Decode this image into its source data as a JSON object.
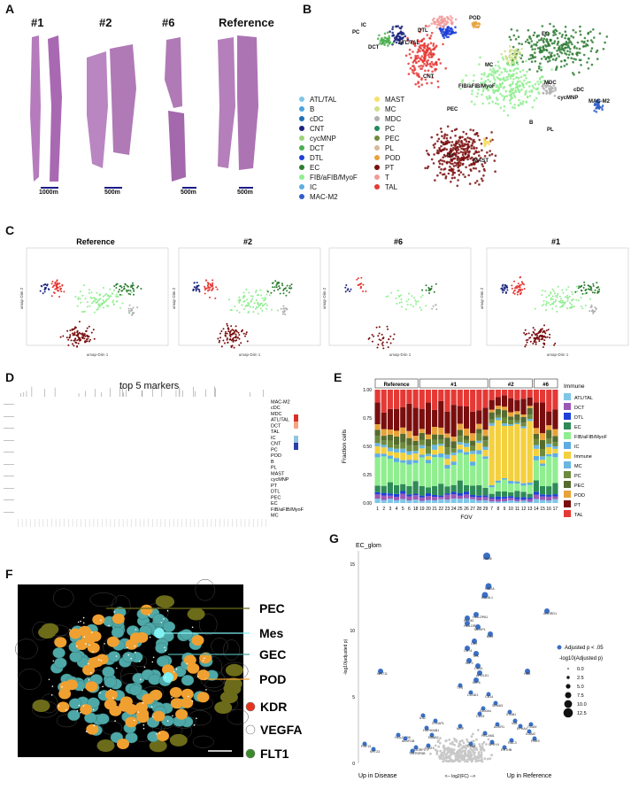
{
  "panel_letters": {
    "A": "A",
    "B": "B",
    "C": "C",
    "D": "D",
    "E": "E",
    "F": "F",
    "G": "G"
  },
  "panelA": {
    "samples": [
      "#1",
      "#2",
      "#6",
      "Reference"
    ],
    "scalebars": [
      "1000m",
      "500m",
      "500m",
      "500m"
    ],
    "tissue_color": "#b07ab6"
  },
  "panelB": {
    "legend_col1": [
      "ATL/TAL",
      "B",
      "cDC",
      "CNT",
      "cycMNP",
      "DCT",
      "DTL",
      "EC",
      "FIB/aFIB/MyoF",
      "IC",
      "MAC-M2"
    ],
    "legend_col2": [
      "MAST",
      "MC",
      "MDC",
      "PC",
      "PEC",
      "PL",
      "POD",
      "PT",
      "T",
      "TAL"
    ],
    "colors_col1": [
      "#7fc6e8",
      "#4aa3df",
      "#1f6fb5",
      "#1a237e",
      "#9cd37a",
      "#4caf50",
      "#1e40d8",
      "#2e7d32",
      "#90ee90",
      "#5dade2",
      "#2f5ec9"
    ],
    "colors_col2": [
      "#f7e06a",
      "#cfe08a",
      "#b0b0b0",
      "#1f8a5a",
      "#6e8b3d",
      "#d9b89a",
      "#e8a23a",
      "#7a0e0e",
      "#f29a9a",
      "#e53935"
    ],
    "cluster_labels": [
      "PC",
      "IC",
      "DCT",
      "ATL/TAL",
      "DTL",
      "POD",
      "EC",
      "MC",
      "CNT",
      "FIB/aFIB/MyoF",
      "MDC",
      "cDC",
      "cycMNP",
      "MAC-M2",
      "PEC",
      "B",
      "PL",
      "PT",
      "MAST"
    ]
  },
  "panelC": {
    "titles": [
      "Reference",
      "#2",
      "#6",
      "#1"
    ],
    "xlabel": "umap-Dim 1",
    "ylabel": "umap-Dim 2"
  },
  "panelD": {
    "title": "top 5 markers",
    "rows": [
      "MAC-M2",
      "cDC",
      "MDC",
      "ATL/TAL",
      "DCT",
      "TAL",
      "IC",
      "CNT",
      "PC",
      "POD",
      "B",
      "PL",
      "MAST",
      "cycMNP",
      "PT",
      "DTL",
      "PEC",
      "EC",
      "FIB/aFIB/MyoF",
      "MC"
    ]
  },
  "panelE": {
    "groups": [
      "Reference",
      "#1",
      "#2",
      "#6"
    ],
    "ylabel": "Fraction cells",
    "xlabel": "FOV",
    "fov_labels": [
      "1",
      "2",
      "3",
      "4",
      "5",
      "6",
      "18",
      "19",
      "20",
      "21",
      "22",
      "23",
      "24",
      "25",
      "26",
      "27",
      "28",
      "29",
      "7",
      "8",
      "9",
      "10",
      "11",
      "12",
      "13",
      "14",
      "15",
      "16",
      "17"
    ],
    "yticks": [
      "0.00",
      "0.25",
      "0.50",
      "0.75",
      "1.00"
    ],
    "legend_title": "Immune",
    "legend": [
      "ATL/TAL",
      "DCT",
      "DTL",
      "EC",
      "FIB/aFIB/MyoF",
      "IC",
      "Immune",
      "MC",
      "PC",
      "PEC",
      "POD",
      "PT",
      "TAL"
    ],
    "legend_colors": [
      "#7fc6e8",
      "#9b59b6",
      "#1e40d8",
      "#2e8b57",
      "#90ee90",
      "#5dade2",
      "#f4d03f",
      "#6bb6e0",
      "#6e8b3d",
      "#556b2f",
      "#e8a23a",
      "#7a0e0e",
      "#e53935"
    ]
  },
  "panelF": {
    "labels": [
      "PEC",
      "Mes",
      "GEC",
      "POD",
      "KDR",
      "VEGFA",
      "FLT1"
    ],
    "line_colors": [
      "#6b6b1a",
      "#80f0f0",
      "#4fa8a8",
      "#f0a030"
    ],
    "dot_colors": [
      "#e8321e",
      "#ffffff",
      "#3a8a2a"
    ]
  },
  "panelG": {
    "title": "EC_glom",
    "ylabel": "-log10(adjusted p)",
    "x_left": "Up in Disease",
    "x_mid": "<-- log2(FC) -->",
    "x_right": "Up in Reference",
    "yticks": [
      "0",
      "5",
      "10",
      "15"
    ],
    "legend_adj": "Adjusted p < .05",
    "legend_size_title": "-log10(Adjusted p)",
    "legend_sizes": [
      "0.0",
      "2.5",
      "5.0",
      "7.5",
      "10.0",
      "12.5"
    ],
    "genes": [
      "GAS6",
      "NID2A",
      "BCL6L1",
      "ADGRD1",
      "HLA-DPA1",
      "IFITM2",
      "HLA-DRB1",
      "MLXIPL",
      "B2M",
      "CD9",
      "CD74",
      "TEK",
      "KLF2",
      "CD34",
      "APOLD1",
      "KLF6",
      "HBB",
      "TYR",
      "CCND1",
      "CD14",
      "SEMA3",
      "S100A4",
      "CD93",
      "STAB1",
      "VIM",
      "ACKR1",
      "EPHA4",
      "ITGA9",
      "WNT11",
      "IL32",
      "STEAP1",
      "HSP90AB1",
      "EFNB2",
      "HLA-DRB5",
      "FGF13",
      "KRT23",
      "ACVR1B",
      "ADGRF5",
      "TNFRSF6B",
      "STAT4",
      "MGP",
      "PECAM1",
      "SPRY4",
      "RAC3",
      "CD69",
      "PBRS",
      "ICAM2",
      "RRTHB"
    ],
    "sig_color": "#3a6fc4",
    "ns_color": "#c8c8c8"
  }
}
